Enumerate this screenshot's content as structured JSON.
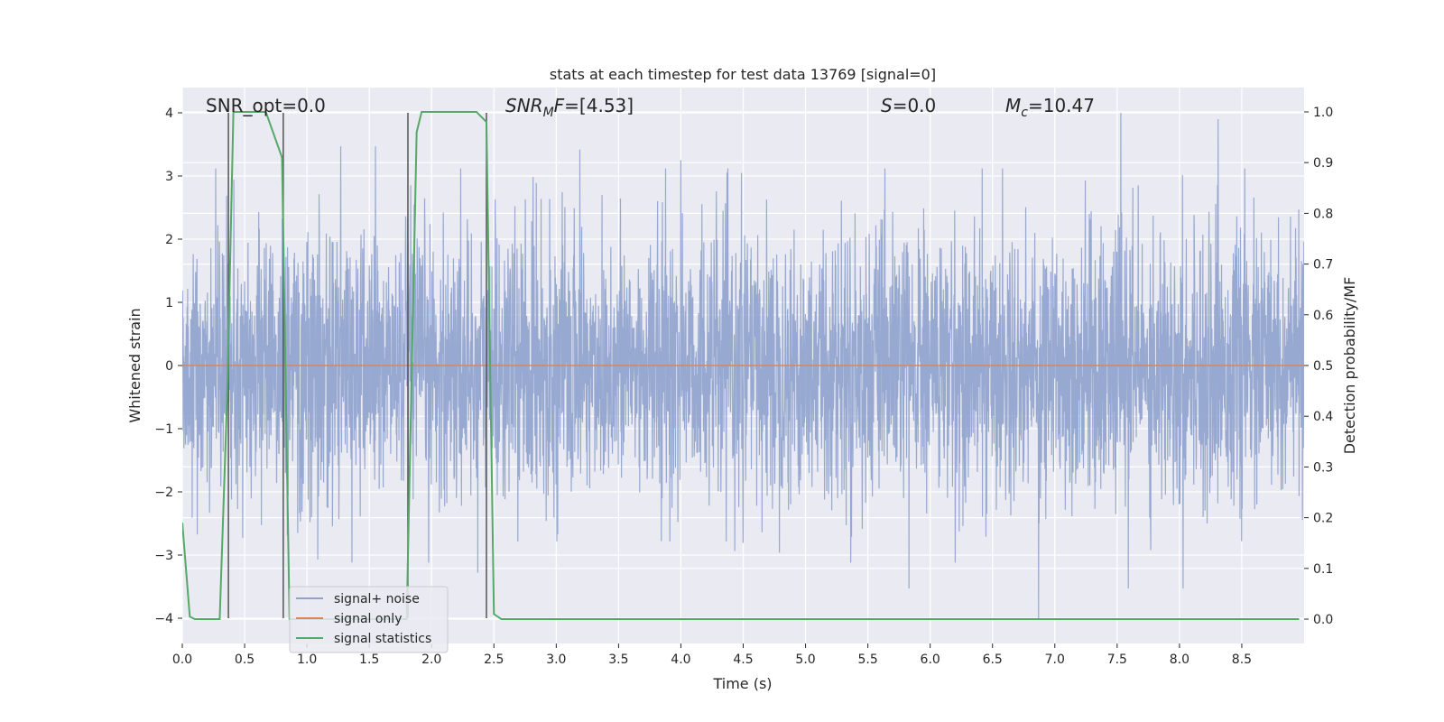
{
  "chart_data": {
    "type": "line",
    "title": "stats at each timestep for test data 13769 [signal=0]",
    "xlabel": "Time (s)",
    "ylabel": "Whitened strain",
    "y2label": "Detection probability/MF",
    "xlim": [
      0.0,
      9.0
    ],
    "ylim": [
      -4.4,
      4.4
    ],
    "y2lim": [
      -0.048,
      1.048
    ],
    "x_ticks": [
      "0.0",
      "0.5",
      "1.0",
      "1.5",
      "2.0",
      "2.5",
      "3.0",
      "3.5",
      "4.0",
      "4.5",
      "5.0",
      "5.5",
      "6.0",
      "6.5",
      "7.0",
      "7.5",
      "8.0",
      "8.5"
    ],
    "y_ticks": [
      "−4",
      "−3",
      "−2",
      "−1",
      "0",
      "1",
      "2",
      "3",
      "4"
    ],
    "y2_ticks": [
      "0.0",
      "0.1",
      "0.2",
      "0.3",
      "0.4",
      "0.5",
      "0.6",
      "0.7",
      "0.8",
      "0.9",
      "1.0"
    ],
    "grid": true,
    "legend_position": "lower-left",
    "annotations": {
      "snr_opt": "SNR_opt=0.0",
      "snr_mf_sym": "SNR",
      "snr_mf_sub": "M",
      "snr_mf_var": "F",
      "snr_mf_val": "=[4.53]",
      "s_sym": "S",
      "s_val": "=0.0",
      "mc_sym": "M",
      "mc_sub": "c",
      "mc_val": "=10.47"
    },
    "series": [
      {
        "name": "signal+ noise",
        "axis": "left",
        "color": "#8ea2cd",
        "description_envelope_abs_max": 4.0,
        "peaks": [
          {
            "x": 7.53,
            "y": 4.0
          },
          {
            "x": 8.31,
            "y": 3.9
          },
          {
            "x": 6.87,
            "y": -4.0
          },
          {
            "x": 1.27,
            "y": 3.47
          },
          {
            "x": 1.55,
            "y": 3.47
          },
          {
            "x": 2.37,
            "y": -3.28
          },
          {
            "x": 5.83,
            "y": -3.53
          },
          {
            "x": 7.59,
            "y": -3.53
          },
          {
            "x": 8.03,
            "y": -3.53
          },
          {
            "x": 4.0,
            "y": 3.25
          },
          {
            "x": 3.19,
            "y": 3.42
          }
        ]
      },
      {
        "name": "signal only",
        "axis": "left",
        "color": "#dd8452",
        "x": [
          0.0,
          9.0
        ],
        "y": [
          0.0,
          0.0
        ]
      },
      {
        "name": "signal statistics",
        "axis": "right",
        "color": "#55a868",
        "x": [
          0.0,
          0.06,
          0.1,
          0.3,
          0.36,
          0.41,
          0.44,
          0.62,
          0.67,
          0.8,
          0.86,
          1.8,
          1.88,
          1.92,
          2.36,
          2.44,
          2.5,
          2.56,
          8.96
        ],
        "y": [
          0.19,
          0.005,
          0.0,
          0.0,
          0.44,
          1.0,
          1.0,
          1.0,
          1.0,
          0.91,
          0.0,
          0.0,
          0.96,
          1.0,
          1.0,
          0.98,
          0.01,
          0.0,
          0.0
        ]
      }
    ],
    "vertical_markers": {
      "color": "#555555",
      "x": [
        0.37,
        0.81,
        1.81,
        2.44
      ]
    }
  }
}
